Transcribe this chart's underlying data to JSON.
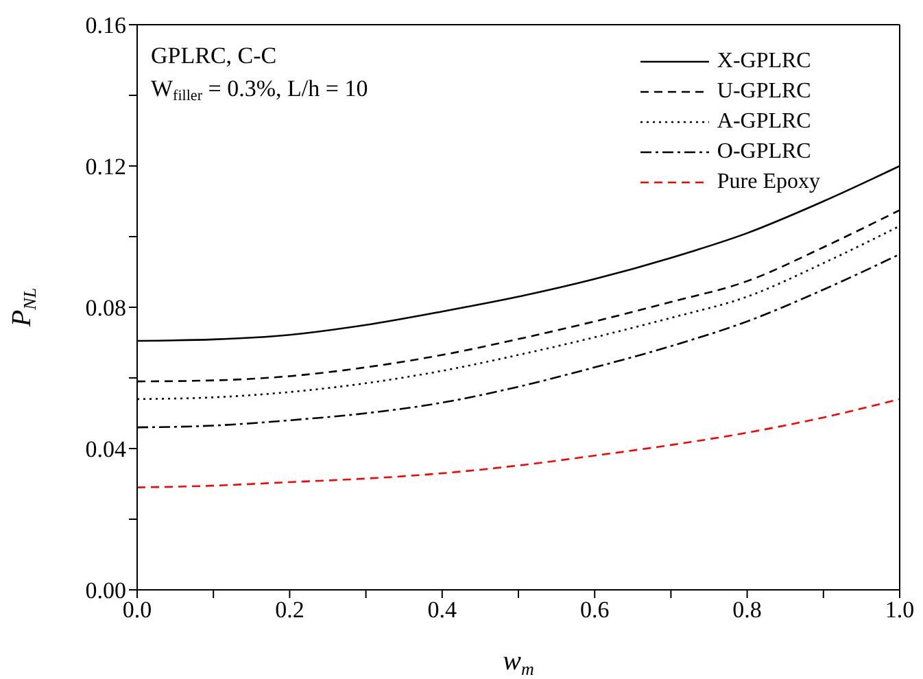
{
  "chart_data": {
    "type": "line",
    "x": [
      0,
      0.1,
      0.2,
      0.3,
      0.4,
      0.5,
      0.6,
      0.7,
      0.8,
      0.9,
      1.0
    ],
    "series": [
      {
        "name": "X-GPLRC",
        "color": "#000000",
        "line_style": "solid",
        "values": [
          0.0705,
          0.0709,
          0.0722,
          0.075,
          0.0788,
          0.083,
          0.088,
          0.094,
          0.101,
          0.11,
          0.12
        ]
      },
      {
        "name": "U-GPLRC",
        "color": "#000000",
        "line_style": "dashed",
        "values": [
          0.059,
          0.0593,
          0.0605,
          0.063,
          0.0665,
          0.071,
          0.076,
          0.0815,
          0.0874,
          0.097,
          0.1075
        ]
      },
      {
        "name": "A-GPLRC",
        "color": "#000000",
        "line_style": "dotted",
        "values": [
          0.054,
          0.0545,
          0.056,
          0.0585,
          0.062,
          0.0665,
          0.0715,
          0.077,
          0.083,
          0.0925,
          0.103
        ]
      },
      {
        "name": "O-GPLRC",
        "color": "#000000",
        "line_style": "dashdot",
        "values": [
          0.046,
          0.0465,
          0.048,
          0.05,
          0.053,
          0.0575,
          0.063,
          0.069,
          0.076,
          0.085,
          0.095
        ]
      },
      {
        "name": "Pure Epoxy",
        "color": "#ff0000",
        "line_style": "dashed",
        "values": [
          0.029,
          0.0295,
          0.0305,
          0.0315,
          0.033,
          0.0352,
          0.038,
          0.041,
          0.0445,
          0.0488,
          0.054
        ]
      }
    ],
    "xlabel": "w$_{m}$",
    "ylabel": "P$_{NL}$",
    "annotations": [
      "GPLRC, C-C",
      "W$_{filler}$ = 0.3%, L/h = 10"
    ],
    "xlim": [
      0,
      1.0
    ],
    "xticks": [
      {
        "value": 0,
        "label": "0.0"
      },
      {
        "value": 0.1,
        "label": null
      },
      {
        "value": 0.2,
        "label": "0.2"
      },
      {
        "value": 0.3,
        "label": null
      },
      {
        "value": 0.4,
        "label": "0.4"
      },
      {
        "value": 0.5,
        "label": null
      },
      {
        "value": 0.6,
        "label": "0.6"
      },
      {
        "value": 0.7,
        "label": null
      },
      {
        "value": 0.8,
        "label": "0.8"
      },
      {
        "value": 0.9,
        "label": null
      },
      {
        "value": 1.0,
        "label": "1.0"
      }
    ],
    "ylim": [
      0,
      0.16
    ],
    "yticks": [
      {
        "value": 0,
        "label": "0.00"
      },
      {
        "value": 0.02,
        "label": null
      },
      {
        "value": 0.04,
        "label": "0.04"
      },
      {
        "value": 0.06,
        "label": null
      },
      {
        "value": 0.08,
        "label": "0.08"
      },
      {
        "value": 0.1,
        "label": null
      },
      {
        "value": 0.12,
        "label": "0.12"
      },
      {
        "value": 0.14,
        "label": null
      },
      {
        "value": 0.16,
        "label": "0.16"
      }
    ],
    "grid": false,
    "legend": "top right",
    "marker": "none"
  }
}
